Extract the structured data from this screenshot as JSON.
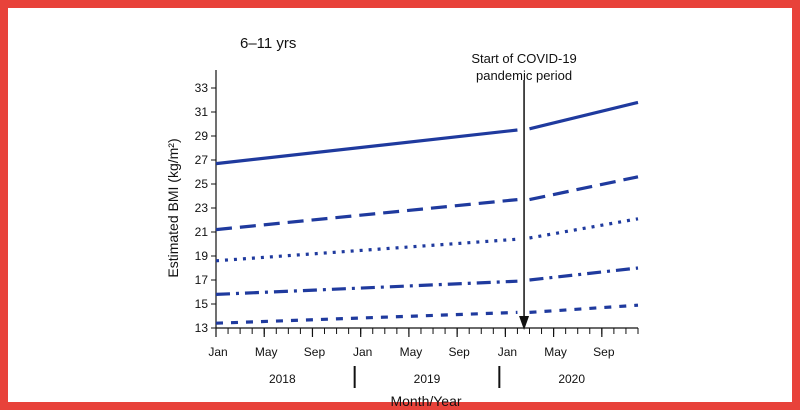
{
  "chart_data": {
    "type": "line",
    "title": "6–11 yrs",
    "xlabel": "Month/Year",
    "ylabel": "Estimated BMI (kg/m²)",
    "ylim": [
      13,
      33
    ],
    "yticks": [
      13,
      15,
      17,
      19,
      21,
      23,
      25,
      27,
      29,
      31,
      33
    ],
    "x_month_ticks": [
      "Jan",
      "May",
      "Sep",
      "Jan",
      "May",
      "Sep",
      "Jan",
      "May",
      "Sep"
    ],
    "x_years": [
      "2018",
      "2019",
      "2020"
    ],
    "xlim": [
      "2018-01",
      "2020-12"
    ],
    "grid": false,
    "annotation": {
      "text_lines": [
        "Start of COVID-19",
        "pandemic period"
      ],
      "x": "2020-03"
    },
    "series": [
      {
        "style": "solid",
        "segments": [
          {
            "x": [
              "2018-01",
              "2020-02"
            ],
            "y": [
              26.7,
              29.5
            ]
          },
          {
            "x": [
              "2020-03",
              "2020-12"
            ],
            "y": [
              29.6,
              31.8
            ]
          }
        ]
      },
      {
        "style": "dashed",
        "segments": [
          {
            "x": [
              "2018-01",
              "2020-02"
            ],
            "y": [
              21.2,
              23.7
            ]
          },
          {
            "x": [
              "2020-03",
              "2020-12"
            ],
            "y": [
              23.7,
              25.6
            ]
          }
        ]
      },
      {
        "style": "dotted",
        "segments": [
          {
            "x": [
              "2018-01",
              "2020-02"
            ],
            "y": [
              18.6,
              20.4
            ]
          },
          {
            "x": [
              "2020-03",
              "2020-12"
            ],
            "y": [
              20.5,
              22.1
            ]
          }
        ]
      },
      {
        "style": "dash-dot",
        "segments": [
          {
            "x": [
              "2018-01",
              "2020-02"
            ],
            "y": [
              15.8,
              16.9
            ]
          },
          {
            "x": [
              "2020-03",
              "2020-12"
            ],
            "y": [
              17.0,
              18.0
            ]
          }
        ]
      },
      {
        "style": "short-dash",
        "segments": [
          {
            "x": [
              "2018-01",
              "2020-02"
            ],
            "y": [
              13.4,
              14.3
            ]
          },
          {
            "x": [
              "2020-03",
              "2020-12"
            ],
            "y": [
              14.3,
              14.9
            ]
          }
        ]
      }
    ],
    "colors": {
      "line": "#1f3a9e",
      "frame": "#e8423a"
    }
  }
}
